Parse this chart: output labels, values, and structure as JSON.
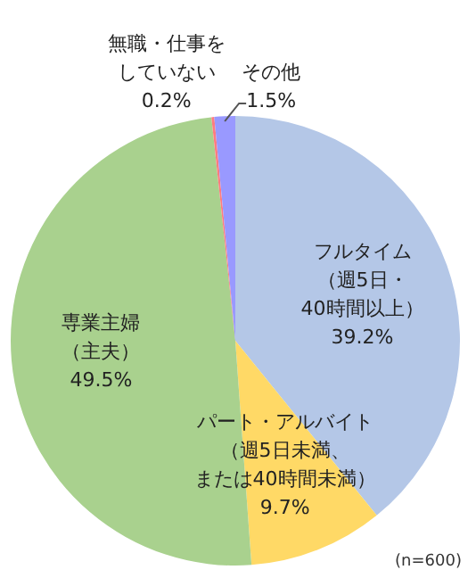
{
  "chart_data": {
    "type": "pie",
    "categories": [
      "フルタイム（週5日・40時間以上）",
      "パート・アルバイト（週5日未満、または40時間未満）",
      "専業主婦（主夫）",
      "無職・仕事をしていない",
      "その他"
    ],
    "values": [
      39.2,
      9.7,
      49.5,
      0.2,
      1.5
    ],
    "value_labels": [
      "39.2%",
      "9.7%",
      "49.5%",
      "0.2%",
      "1.5%"
    ],
    "colors": [
      "#b4c7e7",
      "#ffd966",
      "#a9d18e",
      "#ff7c80",
      "#9999ff"
    ],
    "annotations": [
      "(n=600)"
    ],
    "legend": false
  }
}
